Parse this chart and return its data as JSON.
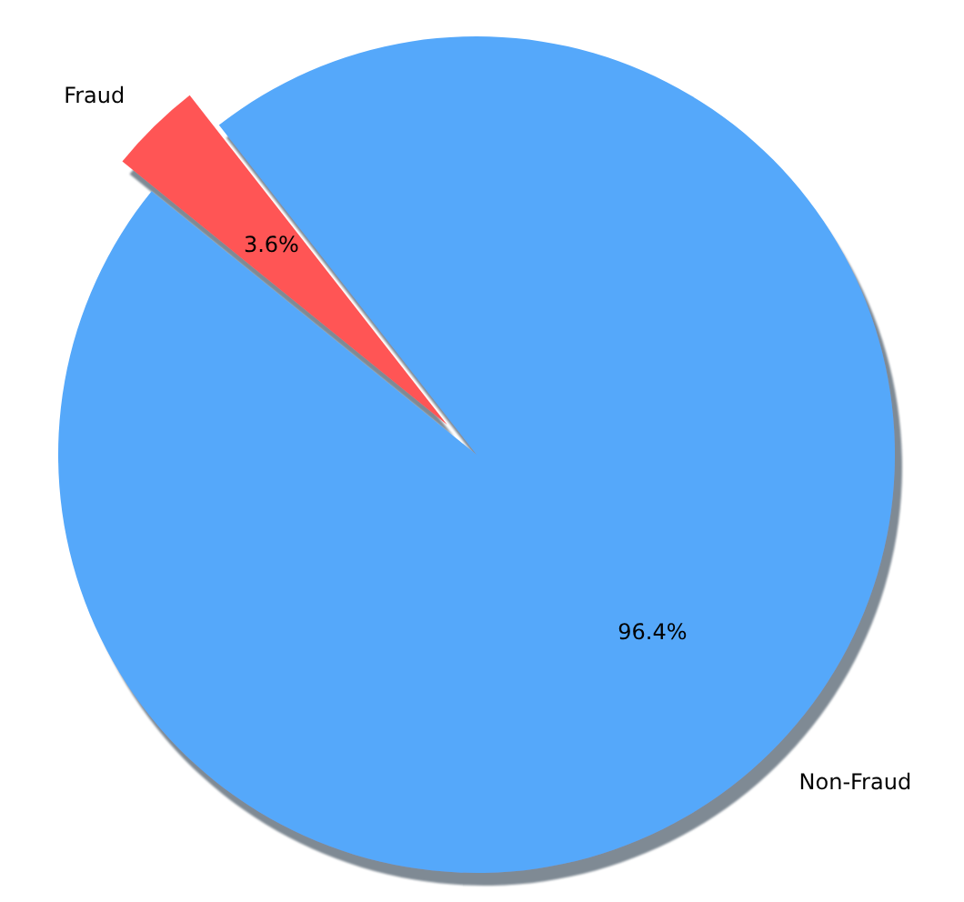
{
  "chart_data": {
    "type": "pie",
    "categories": [
      "Fraud",
      "Non-Fraud"
    ],
    "values": [
      3.6,
      96.4
    ],
    "colors": [
      "#ff5555",
      "#55a8fa"
    ],
    "value_labels": [
      "3.6%",
      "96.4%"
    ]
  }
}
